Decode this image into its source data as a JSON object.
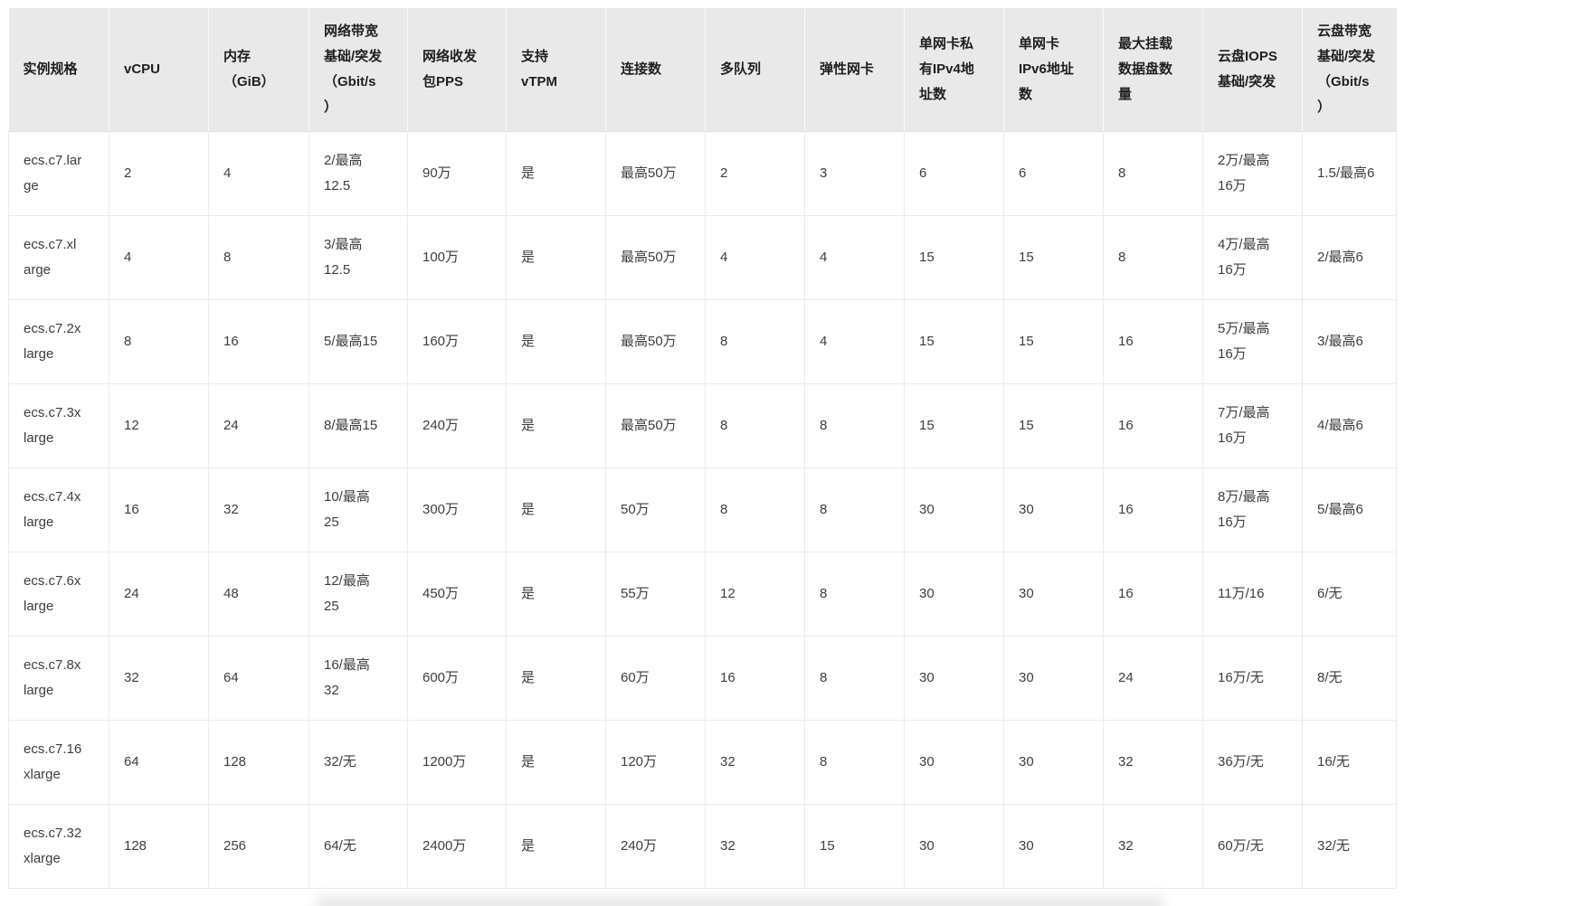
{
  "table": {
    "header_bg": "#e9e9e9",
    "border_color": "#ebebeb",
    "columns": [
      {
        "id": "instance_type",
        "label": "实例规格"
      },
      {
        "id": "vcpu",
        "label": "vCPU"
      },
      {
        "id": "memory_gib",
        "label": "内存\n（GiB）"
      },
      {
        "id": "net_bandwidth",
        "label": "网络带宽\n基础/突发\n（Gbit/s\n）"
      },
      {
        "id": "net_pps",
        "label": "网络收发\n包PPS"
      },
      {
        "id": "vtpm",
        "label": "支持\nvTPM"
      },
      {
        "id": "connections",
        "label": "连接数"
      },
      {
        "id": "multi_queue",
        "label": "多队列"
      },
      {
        "id": "enis",
        "label": "弹性网卡"
      },
      {
        "id": "ipv4_per_eni",
        "label": "单网卡私\n有IPv4地\n址数"
      },
      {
        "id": "ipv6_per_eni",
        "label": "单网卡\nIPv6地址\n数"
      },
      {
        "id": "max_data_disks",
        "label": "最大挂载\n数据盘数\n量"
      },
      {
        "id": "disk_iops",
        "label": "云盘IOPS\n基础/突发"
      },
      {
        "id": "disk_bandwidth",
        "label": "云盘带宽\n基础/突发\n（Gbit/s\n）"
      }
    ],
    "rows": [
      [
        "ecs.c7.lar\nge",
        "2",
        "4",
        "2/最高\n12.5",
        "90万",
        "是",
        "最高50万",
        "2",
        "3",
        "6",
        "6",
        "8",
        "2万/最高\n16万",
        "1.5/最高6"
      ],
      [
        "ecs.c7.xl\narge",
        "4",
        "8",
        "3/最高\n12.5",
        "100万",
        "是",
        "最高50万",
        "4",
        "4",
        "15",
        "15",
        "8",
        "4万/最高\n16万",
        "2/最高6"
      ],
      [
        "ecs.c7.2x\nlarge",
        "8",
        "16",
        "5/最高15",
        "160万",
        "是",
        "最高50万",
        "8",
        "4",
        "15",
        "15",
        "16",
        "5万/最高\n16万",
        "3/最高6"
      ],
      [
        "ecs.c7.3x\nlarge",
        "12",
        "24",
        "8/最高15",
        "240万",
        "是",
        "最高50万",
        "8",
        "8",
        "15",
        "15",
        "16",
        "7万/最高\n16万",
        "4/最高6"
      ],
      [
        "ecs.c7.4x\nlarge",
        "16",
        "32",
        "10/最高\n25",
        "300万",
        "是",
        "50万",
        "8",
        "8",
        "30",
        "30",
        "16",
        "8万/最高\n16万",
        "5/最高6"
      ],
      [
        "ecs.c7.6x\nlarge",
        "24",
        "48",
        "12/最高\n25",
        "450万",
        "是",
        "55万",
        "12",
        "8",
        "30",
        "30",
        "16",
        "11万/16",
        "6/无"
      ],
      [
        "ecs.c7.8x\nlarge",
        "32",
        "64",
        "16/最高\n32",
        "600万",
        "是",
        "60万",
        "16",
        "8",
        "30",
        "30",
        "24",
        "16万/无",
        "8/无"
      ],
      [
        "ecs.c7.16\nxlarge",
        "64",
        "128",
        "32/无",
        "1200万",
        "是",
        "120万",
        "32",
        "8",
        "30",
        "30",
        "32",
        "36万/无",
        "16/无"
      ],
      [
        "ecs.c7.32\nxlarge",
        "128",
        "256",
        "64/无",
        "2400万",
        "是",
        "240万",
        "32",
        "15",
        "30",
        "30",
        "32",
        "60万/无",
        "32/无"
      ]
    ]
  }
}
